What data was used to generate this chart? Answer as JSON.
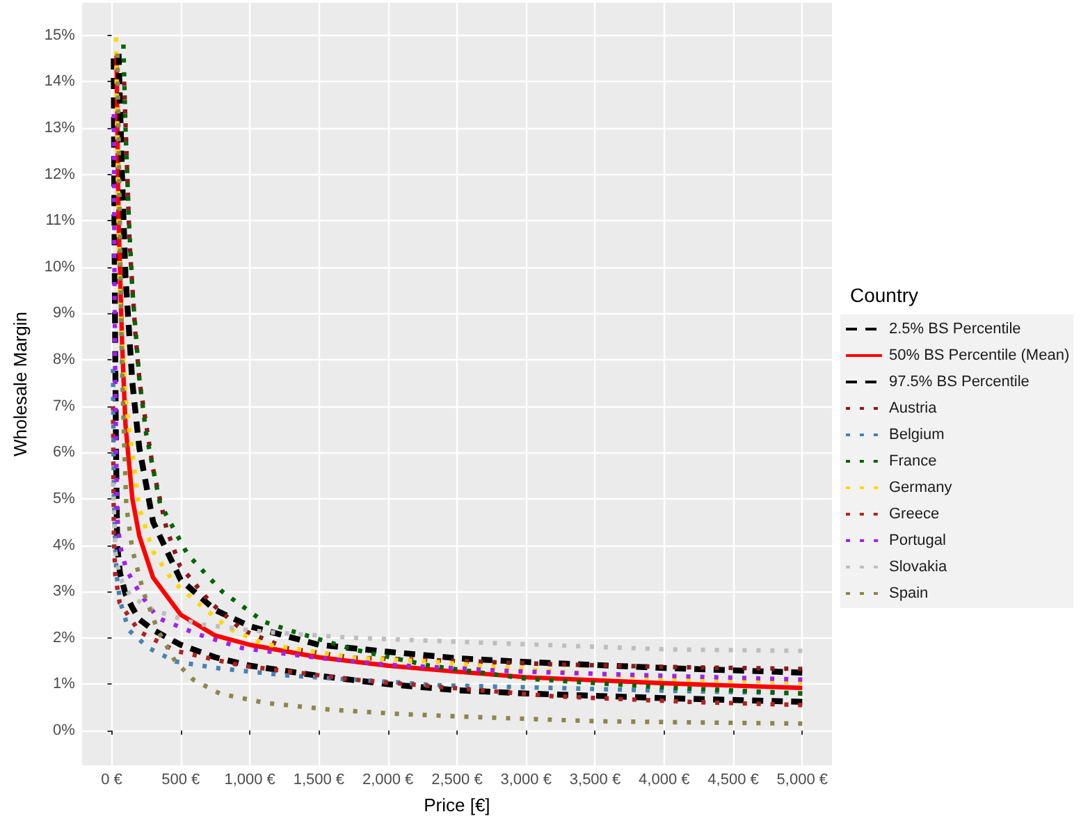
{
  "chart_data": {
    "type": "line",
    "xlabel": "Price [€]",
    "ylabel": "Wholesale Margin",
    "legend_title": "Country",
    "legend": "right",
    "grid": true,
    "marker": "none",
    "xlim": [
      -215,
      5215
    ],
    "ylim": [
      -0.75,
      15.7
    ],
    "xticks": [
      {
        "value": 0,
        "label": "0 €"
      },
      {
        "value": 500,
        "label": "500 €"
      },
      {
        "value": 1000,
        "label": "1,000 €"
      },
      {
        "value": 1500,
        "label": "1,500 €"
      },
      {
        "value": 2000,
        "label": "2,000 €"
      },
      {
        "value": 2500,
        "label": "2,500 €"
      },
      {
        "value": 3000,
        "label": "3,000 €"
      },
      {
        "value": 3500,
        "label": "3,500 €"
      },
      {
        "value": 4000,
        "label": "4,000 €"
      },
      {
        "value": 4500,
        "label": "4,500 €"
      },
      {
        "value": 5000,
        "label": "5,000 €"
      }
    ],
    "yticks": [
      {
        "value": 0,
        "label": "0%"
      },
      {
        "value": 1,
        "label": "1%"
      },
      {
        "value": 2,
        "label": "2%"
      },
      {
        "value": 3,
        "label": "3%"
      },
      {
        "value": 4,
        "label": "4%"
      },
      {
        "value": 5,
        "label": "5%"
      },
      {
        "value": 6,
        "label": "6%"
      },
      {
        "value": 7,
        "label": "7%"
      },
      {
        "value": 8,
        "label": "8%"
      },
      {
        "value": 9,
        "label": "9%"
      },
      {
        "value": 10,
        "label": "10%"
      },
      {
        "value": 11,
        "label": "11%"
      },
      {
        "value": 12,
        "label": "12%"
      },
      {
        "value": 13,
        "label": "13%"
      },
      {
        "value": 14,
        "label": "14%"
      },
      {
        "value": 15,
        "label": "15%"
      }
    ],
    "series": [
      {
        "name": "2.5% BS Percentile",
        "color": "#000000",
        "line_style": "dashed",
        "x": [
          15,
          20,
          25,
          30,
          40,
          60,
          100,
          150,
          200,
          300,
          500,
          750,
          1000,
          1500,
          2000,
          2500,
          3000,
          4000,
          5000
        ],
        "values": [
          14.5,
          11,
          8.5,
          6.5,
          4.0,
          3.4,
          2.95,
          2.65,
          2.4,
          2.17,
          1.85,
          1.58,
          1.4,
          1.18,
          1.0,
          0.87,
          0.8,
          0.7,
          0.62
        ]
      },
      {
        "name": "50% BS Percentile (Mean)",
        "color": "#ff0000",
        "line_style": "solid",
        "x": [
          35,
          50,
          75,
          100,
          150,
          200,
          300,
          500,
          750,
          1000,
          1500,
          2000,
          2500,
          3000,
          4000,
          5000
        ],
        "values": [
          14.6,
          11.0,
          8.4,
          6.6,
          5.0,
          4.2,
          3.3,
          2.5,
          2.05,
          1.85,
          1.58,
          1.4,
          1.27,
          1.15,
          1.02,
          0.92
        ]
      },
      {
        "name": "97.5% BS Percentile",
        "color": "#000000",
        "line_style": "dashed",
        "x": [
          50,
          75,
          100,
          150,
          200,
          300,
          500,
          750,
          1000,
          1500,
          2000,
          2500,
          3000,
          4000,
          5000
        ],
        "values": [
          14.6,
          12,
          9.8,
          7.5,
          6.1,
          4.5,
          3.25,
          2.6,
          2.25,
          1.85,
          1.7,
          1.56,
          1.48,
          1.35,
          1.25
        ]
      },
      {
        "name": "Austria",
        "color": "#8b1a1a",
        "line_style": "dotted",
        "x": [
          90,
          130,
          171,
          203,
          300,
          397,
          493,
          716,
          945,
          1267,
          1750,
          2427,
          3200,
          4070,
          5000
        ],
        "values": [
          14,
          10.5,
          8.6,
          7.5,
          5.64,
          4.36,
          3.56,
          2.76,
          2.17,
          1.78,
          1.57,
          1.51,
          1.43,
          1.37,
          1.33
        ]
      },
      {
        "name": "Belgium",
        "color": "#4682b4",
        "line_style": "dotted",
        "x": [
          10,
          16,
          25,
          36,
          60,
          123,
          268,
          461,
          783,
          1267,
          2070,
          2330,
          3200,
          3850,
          5000
        ],
        "values": [
          7.8,
          5.0,
          4.0,
          3.36,
          2.8,
          2.17,
          1.78,
          1.49,
          1.34,
          1.19,
          1.04,
          0.98,
          0.92,
          0.87,
          0.8
        ]
      },
      {
        "name": "France",
        "color": "#006400",
        "line_style": "dotted",
        "x": [
          85,
          100,
          125,
          150,
          200,
          250,
          350,
          550,
          800,
          1100,
          1300,
          1750,
          2300,
          3000,
          4000,
          5000
        ],
        "values": [
          14.8,
          13,
          11,
          9.5,
          7.6,
          6.4,
          4.9,
          3.8,
          3.0,
          2.35,
          2.15,
          1.75,
          1.4,
          1.12,
          0.93,
          0.8
        ]
      },
      {
        "name": "Germany",
        "color": "#ffd700",
        "line_style": "dotted",
        "x": [
          32,
          45,
          58,
          80,
          106,
          200,
          300,
          450,
          621,
          850,
          1100,
          1750,
          2300,
          3000,
          4000,
          5000
        ],
        "values": [
          14.95,
          12,
          9.5,
          8.2,
          7.0,
          4.8,
          3.86,
          3.2,
          2.76,
          2.2,
          1.87,
          1.57,
          1.49,
          1.32,
          1.12,
          1.04
        ]
      },
      {
        "name": "Greece",
        "color": "#b22222",
        "line_style": "dotted",
        "x": [
          10,
          16,
          26,
          58,
          123,
          203,
          461,
          945,
          1750,
          2550,
          3200,
          4170,
          5000
        ],
        "values": [
          7.0,
          4.16,
          3.36,
          2.76,
          2.47,
          2.13,
          1.72,
          1.4,
          1.1,
          0.9,
          0.74,
          0.62,
          0.55
        ]
      },
      {
        "name": "Portugal",
        "color": "#a020f0",
        "line_style": "dotted",
        "x": [
          16,
          20,
          26,
          35,
          42,
          60,
          106,
          203,
          333,
          621,
          945,
          1490,
          2000,
          2900,
          3900,
          5000
        ],
        "values": [
          13.3,
          10,
          7.5,
          5.5,
          4.55,
          4.0,
          3.47,
          2.97,
          2.43,
          2.08,
          1.78,
          1.57,
          1.42,
          1.28,
          1.19,
          1.1
        ]
      },
      {
        "name": "Slovakia",
        "color": "#bebebe",
        "line_style": "dotted",
        "x": [
          10,
          26,
          60,
          136,
          300,
          621,
          1103,
          1750,
          2650,
          3200,
          4040,
          5000
        ],
        "values": [
          5.35,
          3.86,
          3.3,
          2.9,
          2.6,
          2.3,
          2.13,
          2.0,
          1.9,
          1.84,
          1.75,
          1.72
        ]
      },
      {
        "name": "Spain",
        "color": "#8b864e",
        "line_style": "dotted",
        "x": [
          42,
          58,
          74,
          90,
          106,
          150,
          232,
          333,
          461,
          590,
          783,
          1103,
          1586,
          2070,
          2550,
          3520,
          5000
        ],
        "values": [
          14.6,
          11.1,
          8.0,
          6.3,
          4.85,
          3.9,
          2.97,
          2.17,
          1.49,
          1.1,
          0.8,
          0.6,
          0.45,
          0.36,
          0.3,
          0.2,
          0.15
        ]
      }
    ]
  }
}
